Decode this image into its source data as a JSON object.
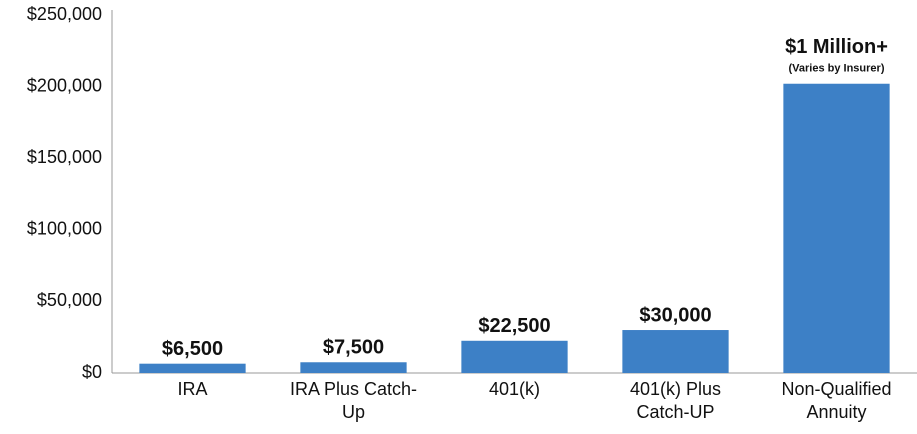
{
  "chart_data": {
    "type": "bar",
    "categories": [
      "IRA",
      "IRA Plus Catch-Up",
      "401(k)",
      "401(k) Plus Catch-UP",
      "Non-Qualified Annuity"
    ],
    "values": [
      6500,
      7500,
      22500,
      30000,
      202000
    ],
    "value_labels": [
      "$6,500",
      "$7,500",
      "$22,500",
      "$30,000",
      null
    ],
    "annotations": [
      {
        "text": "$1 Million+",
        "subtext": "(Varies by Insurer)",
        "category": 4
      }
    ],
    "color": "#3d80c6",
    "ylim": [
      0,
      250000
    ],
    "yticks": [
      {
        "value": 0,
        "label": "$0"
      },
      {
        "value": 50000,
        "label": "$50,000"
      },
      {
        "value": 100000,
        "label": "$100,000"
      },
      {
        "value": 150000,
        "label": "$150,000"
      },
      {
        "value": 200000,
        "label": "$200,000"
      },
      {
        "value": 250000,
        "label": "$250,000"
      }
    ],
    "grid": false
  }
}
